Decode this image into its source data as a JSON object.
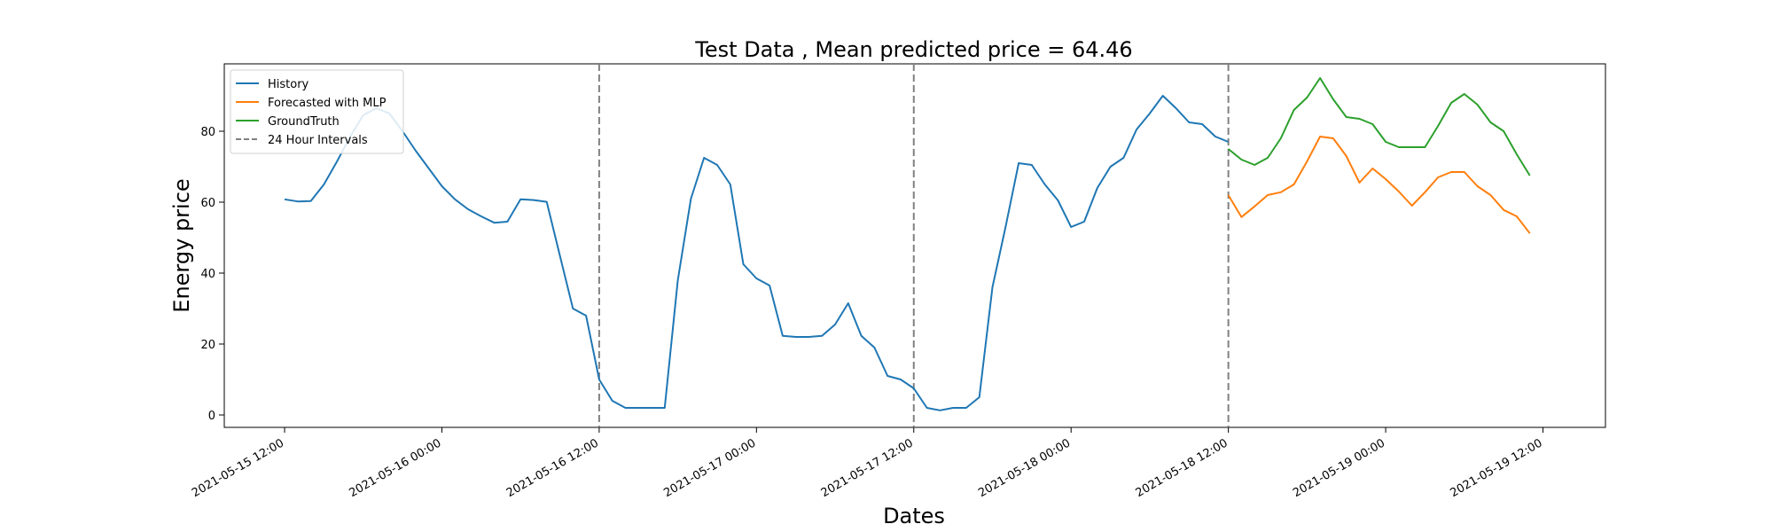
{
  "chart_data": {
    "type": "line",
    "title": "Test Data , Mean predicted price = 64.46",
    "xlabel": "Dates",
    "ylabel": "Energy price",
    "x_axis": {
      "type": "datetime",
      "range": [
        "2021-05-15 07:24",
        "2021-05-19 16:46"
      ],
      "ticks": [
        "2021-05-15 12:00",
        "2021-05-16 00:00",
        "2021-05-16 12:00",
        "2021-05-17 00:00",
        "2021-05-17 12:00",
        "2021-05-18 00:00",
        "2021-05-18 12:00",
        "2021-05-19 00:00",
        "2021-05-19 12:00"
      ],
      "tick_label_rotation": 30
    },
    "y_axis": {
      "range": [
        -3.5,
        99
      ],
      "ticks": [
        0,
        20,
        40,
        60,
        80
      ]
    },
    "grid": false,
    "legend_position": "top-left",
    "series": [
      {
        "name": "History",
        "color": "#1f77b4",
        "start": "2021-05-15 12:00",
        "step_hours": 1,
        "values": [
          60.8,
          60.2,
          60.3,
          65.0,
          71.5,
          78.5,
          84.5,
          86.5,
          85.0,
          80.0,
          74.5,
          69.5,
          64.5,
          60.8,
          58.0,
          56.0,
          54.2,
          54.5,
          60.8,
          60.6,
          60.1,
          45.0,
          30.0,
          28.0,
          10.0,
          4.0,
          2.0,
          2.0,
          2.0,
          2.0,
          38.0,
          61.0,
          72.5,
          70.5,
          65.0,
          42.5,
          38.5,
          36.5,
          22.3,
          22.0,
          22.0,
          22.3,
          25.5,
          31.5,
          22.3,
          19.0,
          11.0,
          10.0,
          7.5,
          2.0,
          1.3,
          2.0,
          2.0,
          5.0,
          36.0,
          53.0,
          71.0,
          70.5,
          65.0,
          60.5,
          53.0,
          54.5,
          64.0,
          70.0,
          72.5,
          80.5,
          85.0,
          90.0,
          86.5,
          82.5,
          82.0,
          78.5,
          77.0
        ]
      },
      {
        "name": "Forecasted with MLP",
        "color": "#ff7f0e",
        "start": "2021-05-18 12:00",
        "step_hours": 1,
        "values": [
          62.0,
          55.8,
          58.8,
          62.0,
          62.8,
          65.0,
          71.5,
          78.5,
          78.0,
          73.0,
          65.5,
          69.5,
          66.5,
          63.0,
          59.0,
          62.8,
          67.0,
          68.5,
          68.5,
          64.5,
          62.0,
          57.8,
          56.0,
          51.2
        ]
      },
      {
        "name": "GroundTruth",
        "color": "#2ca02c",
        "start": "2021-05-18 12:00",
        "step_hours": 1,
        "values": [
          75.0,
          72.0,
          70.5,
          72.5,
          78.0,
          86.0,
          89.5,
          95.0,
          89.0,
          84.0,
          83.5,
          82.0,
          77.0,
          75.5,
          75.5,
          75.5,
          81.5,
          88.0,
          90.5,
          87.5,
          82.5,
          80.0,
          73.5,
          67.5
        ]
      },
      {
        "name": "24 Hour Intervals",
        "color": "#808080",
        "style": "dashed",
        "x": [
          "2021-05-16 12:00",
          "2021-05-17 12:00",
          "2021-05-18 12:00"
        ]
      }
    ]
  }
}
